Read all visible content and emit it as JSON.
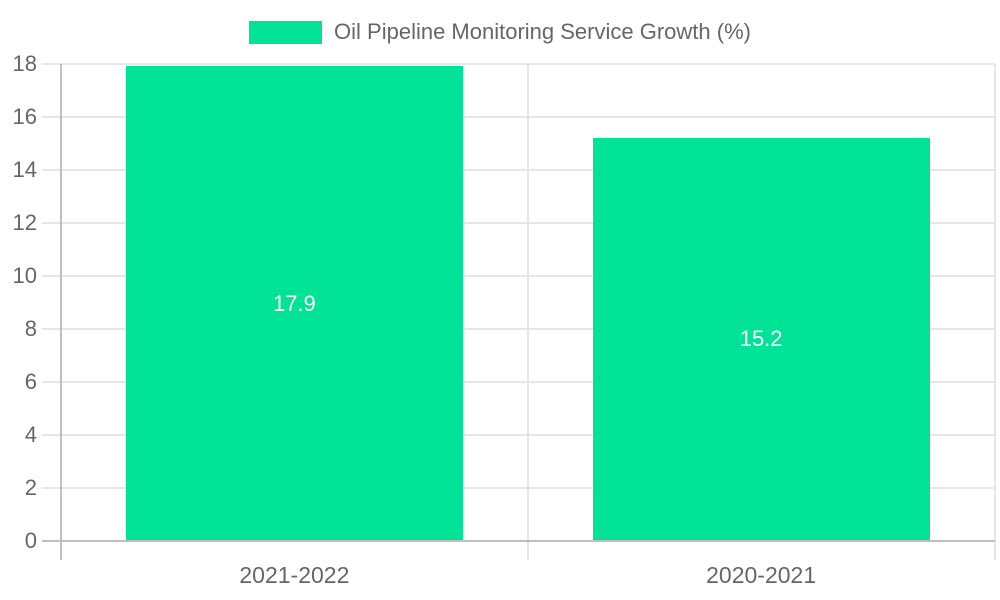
{
  "legend": {
    "label": "Oil Pipeline Monitoring Service Growth (%)"
  },
  "colors": {
    "bar": "#00E396",
    "legend_swatch": "#00E396",
    "axis_text": "#666666",
    "grid_line": "#e6e6e6",
    "axis_line": "#bfbfbf",
    "value_label": "#ffffff",
    "background": "#ffffff"
  },
  "chart_data": {
    "type": "bar",
    "categories": [
      "2021-2022",
      "2020-2021"
    ],
    "series": [
      {
        "name": "Oil Pipeline Monitoring Service Growth (%)",
        "values": [
          17.9,
          15.2
        ]
      }
    ],
    "value_labels": [
      "17.9",
      "15.2"
    ],
    "title": "",
    "xlabel": "",
    "ylabel": "",
    "ylim": [
      0,
      18
    ],
    "yticks": [
      0,
      2,
      4,
      6,
      8,
      10,
      12,
      14,
      16,
      18
    ],
    "grid": true,
    "legend_position": "top"
  }
}
